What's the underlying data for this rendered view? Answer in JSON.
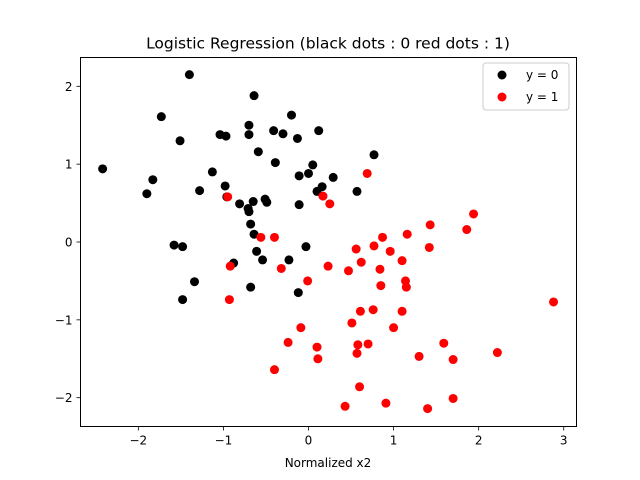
{
  "chart_data": {
    "type": "scatter",
    "title": "Logistic Regression (black dots : 0 red dots : 1)",
    "xlabel": "Normalized x2",
    "ylabel": "",
    "xlim": [
      -2.68,
      3.15
    ],
    "ylim": [
      -2.37,
      2.37
    ],
    "x_ticks": [
      -2,
      -1,
      0,
      1,
      2,
      3
    ],
    "y_ticks": [
      -2,
      -1,
      0,
      1,
      2
    ],
    "grid": false,
    "legend_position": "top-right",
    "series": [
      {
        "name": "y = 0",
        "color": "#000000",
        "points": [
          [
            -1.4,
            2.15
          ],
          [
            -1.73,
            1.61
          ],
          [
            -0.64,
            1.88
          ],
          [
            -0.2,
            1.63
          ],
          [
            -0.7,
            1.5
          ],
          [
            -0.7,
            1.38
          ],
          [
            -0.41,
            1.43
          ],
          [
            -0.3,
            1.39
          ],
          [
            0.12,
            1.43
          ],
          [
            -1.51,
            1.3
          ],
          [
            -1.04,
            1.38
          ],
          [
            -0.97,
            1.36
          ],
          [
            -0.13,
            1.33
          ],
          [
            -0.59,
            1.16
          ],
          [
            0.77,
            1.12
          ],
          [
            -2.42,
            0.94
          ],
          [
            -0.39,
            1.02
          ],
          [
            0.05,
            0.99
          ],
          [
            -1.13,
            0.9
          ],
          [
            -0.11,
            0.85
          ],
          [
            0.0,
            0.88
          ],
          [
            0.29,
            0.83
          ],
          [
            -1.83,
            0.8
          ],
          [
            -0.98,
            0.72
          ],
          [
            0.16,
            0.71
          ],
          [
            -1.28,
            0.66
          ],
          [
            0.1,
            0.65
          ],
          [
            0.57,
            0.65
          ],
          [
            -1.9,
            0.62
          ],
          [
            -0.96,
            0.58
          ],
          [
            -0.51,
            0.55
          ],
          [
            -0.81,
            0.49
          ],
          [
            -0.65,
            0.52
          ],
          [
            -0.49,
            0.51
          ],
          [
            -0.11,
            0.48
          ],
          [
            -0.71,
            0.43
          ],
          [
            -0.7,
            0.39
          ],
          [
            -0.68,
            0.23
          ],
          [
            -0.64,
            0.1
          ],
          [
            -1.58,
            -0.04
          ],
          [
            -1.48,
            -0.06
          ],
          [
            -0.03,
            -0.06
          ],
          [
            -0.61,
            -0.12
          ],
          [
            -0.88,
            -0.27
          ],
          [
            -0.54,
            -0.23
          ],
          [
            -0.23,
            -0.23
          ],
          [
            -1.34,
            -0.51
          ],
          [
            -0.68,
            -0.58
          ],
          [
            -0.12,
            -0.65
          ],
          [
            -1.48,
            -0.74
          ]
        ]
      },
      {
        "name": "y = 1",
        "color": "#ff0000",
        "points": [
          [
            0.69,
            0.88
          ],
          [
            0.17,
            0.59
          ],
          [
            -0.95,
            0.58
          ],
          [
            0.25,
            0.49
          ],
          [
            1.94,
            0.36
          ],
          [
            1.43,
            0.22
          ],
          [
            1.86,
            0.16
          ],
          [
            1.16,
            0.1
          ],
          [
            -0.56,
            0.06
          ],
          [
            0.87,
            0.06
          ],
          [
            -0.4,
            0.06
          ],
          [
            0.77,
            -0.05
          ],
          [
            1.42,
            -0.07
          ],
          [
            0.56,
            -0.09
          ],
          [
            0.96,
            -0.12
          ],
          [
            1.1,
            -0.24
          ],
          [
            0.62,
            -0.26
          ],
          [
            0.23,
            -0.31
          ],
          [
            -0.92,
            -0.31
          ],
          [
            -0.32,
            -0.34
          ],
          [
            0.84,
            -0.35
          ],
          [
            0.47,
            -0.37
          ],
          [
            -0.01,
            -0.5
          ],
          [
            1.14,
            -0.5
          ],
          [
            0.85,
            -0.56
          ],
          [
            1.15,
            -0.58
          ],
          [
            -0.93,
            -0.74
          ],
          [
            2.88,
            -0.77
          ],
          [
            0.76,
            -0.87
          ],
          [
            0.61,
            -0.89
          ],
          [
            1.1,
            -0.89
          ],
          [
            0.51,
            -1.04
          ],
          [
            -0.09,
            -1.1
          ],
          [
            1.0,
            -1.1
          ],
          [
            -0.24,
            -1.29
          ],
          [
            1.59,
            -1.3
          ],
          [
            0.58,
            -1.32
          ],
          [
            0.7,
            -1.31
          ],
          [
            0.1,
            -1.35
          ],
          [
            0.57,
            -1.43
          ],
          [
            2.22,
            -1.42
          ],
          [
            1.3,
            -1.47
          ],
          [
            0.11,
            -1.5
          ],
          [
            1.7,
            -1.51
          ],
          [
            -0.4,
            -1.64
          ],
          [
            0.6,
            -1.86
          ],
          [
            1.7,
            -2.01
          ],
          [
            0.91,
            -2.07
          ],
          [
            0.43,
            -2.11
          ],
          [
            1.4,
            -2.14
          ]
        ]
      }
    ]
  }
}
